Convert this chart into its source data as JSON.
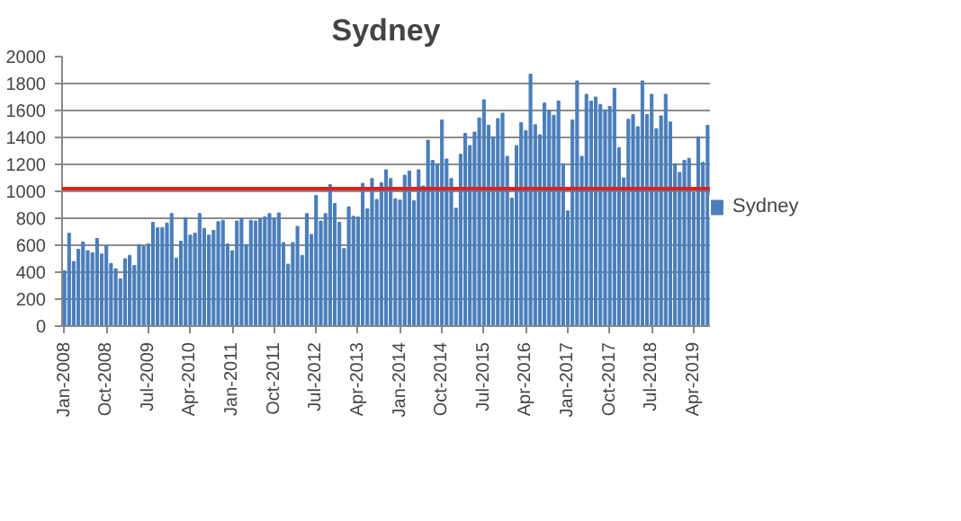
{
  "chart_data": {
    "type": "bar",
    "title": "Sydney",
    "categories": [
      "Jan-2008",
      null,
      null,
      null,
      null,
      null,
      null,
      null,
      null,
      "Oct-2008",
      null,
      null,
      null,
      null,
      null,
      null,
      null,
      null,
      "Jul-2009",
      null,
      null,
      null,
      null,
      null,
      null,
      null,
      null,
      "Apr-2010",
      null,
      null,
      null,
      null,
      null,
      null,
      null,
      null,
      "Jan-2011",
      null,
      null,
      null,
      null,
      null,
      null,
      null,
      null,
      "Oct-2011",
      null,
      null,
      null,
      null,
      null,
      null,
      null,
      null,
      "Jul-2012",
      null,
      null,
      null,
      null,
      null,
      null,
      null,
      null,
      "Apr-2013",
      null,
      null,
      null,
      null,
      null,
      null,
      null,
      null,
      "Jan-2014",
      null,
      null,
      null,
      null,
      null,
      null,
      null,
      null,
      "Oct-2014",
      null,
      null,
      null,
      null,
      null,
      null,
      null,
      null,
      "Jul-2015",
      null,
      null,
      null,
      null,
      null,
      null,
      null,
      null,
      "Apr-2016",
      null,
      null,
      null,
      null,
      null,
      null,
      null,
      null,
      "Jan-2017",
      null,
      null,
      null,
      null,
      null,
      null,
      null,
      null,
      "Oct-2017",
      null,
      null,
      null,
      null,
      null,
      null,
      null,
      null,
      "Jul-2018",
      null,
      null,
      null,
      null,
      null,
      null,
      null,
      null,
      "Apr-2019",
      null,
      null,
      null
    ],
    "series": [
      {
        "name": "Sydney",
        "color": "#4a7ebb",
        "values": [
          410,
          690,
          480,
          570,
          625,
          560,
          545,
          650,
          535,
          595,
          465,
          425,
          350,
          500,
          525,
          450,
          605,
          590,
          610,
          770,
          730,
          730,
          765,
          835,
          505,
          630,
          805,
          675,
          690,
          835,
          725,
          675,
          710,
          775,
          785,
          610,
          560,
          780,
          800,
          605,
          785,
          780,
          800,
          810,
          835,
          800,
          840,
          620,
          460,
          620,
          740,
          525,
          835,
          680,
          970,
          780,
          835,
          1050,
          910,
          770,
          575,
          885,
          815,
          810,
          1060,
          870,
          1095,
          940,
          1065,
          1160,
          1095,
          945,
          935,
          1120,
          1150,
          930,
          1160,
          1040,
          1380,
          1230,
          1205,
          1530,
          1240,
          1095,
          875,
          1275,
          1430,
          1340,
          1440,
          1545,
          1680,
          1490,
          1405,
          1540,
          1580,
          1260,
          950,
          1340,
          1510,
          1450,
          1870,
          1495,
          1420,
          1655,
          1600,
          1565,
          1670,
          1205,
          855,
          1530,
          1820,
          1260,
          1720,
          1670,
          1700,
          1645,
          1605,
          1630,
          1765,
          1325,
          1100,
          1535,
          1570,
          1480,
          1820,
          1570,
          1720,
          1465,
          1560,
          1720,
          1515,
          1205,
          1140,
          1230,
          1245,
          990,
          1405,
          1215,
          1490
        ]
      }
    ],
    "ylim": [
      0,
      2000
    ],
    "yticks": [
      0,
      200,
      400,
      600,
      800,
      1000,
      1200,
      1400,
      1600,
      1800,
      2000
    ],
    "ref_lines": [
      {
        "axis": "y",
        "value": 1020,
        "label": null,
        "color": "#e0201b"
      }
    ],
    "grid": "y",
    "legend": "right"
  }
}
